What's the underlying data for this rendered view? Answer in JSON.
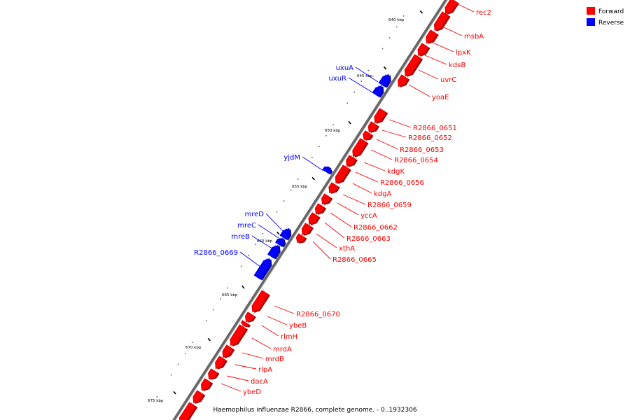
{
  "caption": "Haemophilus influenzae R2866, complete genome. - 0..1932306",
  "legend": {
    "forward": {
      "label": "Forward",
      "color": "#ff0000"
    },
    "reverse": {
      "label": "Reverse",
      "color": "#0000ff"
    }
  },
  "ticks": [
    "640 kbp",
    "645 kbp",
    "650 kbp",
    "655 kbp",
    "660 kbp",
    "665 kbp",
    "670 kbp",
    "675 kbp"
  ],
  "genes": {
    "forward": [
      "rec2",
      "msbA",
      "lpxK",
      "kdsB",
      "uvrC",
      "yoaE",
      "R2866_0651",
      "R2866_0652",
      "R2866_0653",
      "R2866_0654",
      "kdgK",
      "R2866_0656",
      "kdgA",
      "R2866_0659",
      "yccA",
      "R2866_0662",
      "R2866_0663",
      "xthA",
      "R2866_0665",
      "R2866_0670",
      "ybeB",
      "rlmH",
      "mrdA",
      "mrdB",
      "rlpA",
      "dacA",
      "ybeD"
    ],
    "reverse": [
      "uxuA",
      "uxuR",
      "yjdM",
      "mreD",
      "mreC",
      "mreB",
      "R2866_0669"
    ]
  }
}
